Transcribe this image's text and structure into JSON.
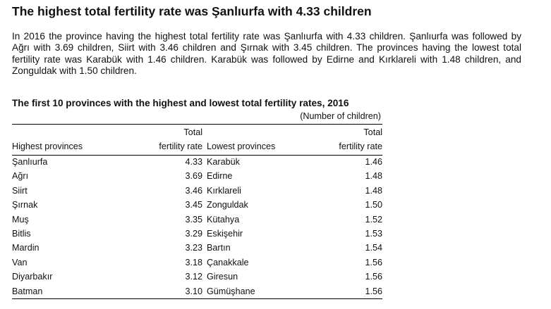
{
  "heading": "The highest total fertility rate was Şanlıurfa with 4.33 children",
  "paragraph": "In 2016 the province having the highest total fertility rate was Şanlıurfa with 4.33 children. Şanlıurfa was followed by Ağrı with 3.69 children, Siirt with 3.46 children and Şırnak with 3.45 children. The provinces having the lowest total fertility rate was Karabük with 1.46 children. Karabük was followed by Edirne and Kırklareli with 1.48 children, and Zonguldak with 1.50 children.",
  "table": {
    "title": "The first 10 provinces with the highest and lowest total fertility rates, 2016",
    "unit": "(Number of children)",
    "headers": {
      "highest_provinces": "Highest provinces",
      "highest_rate_line1": "Total",
      "highest_rate_line2": "fertility rate",
      "lowest_provinces": "Lowest provinces",
      "lowest_rate_line1": "Total",
      "lowest_rate_line2": "fertility rate"
    },
    "rows": [
      {
        "highest_province": "Şanlıurfa",
        "highest_rate": "4.33",
        "lowest_province": "Karabük",
        "lowest_rate": "1.46"
      },
      {
        "highest_province": "Ağrı",
        "highest_rate": "3.69",
        "lowest_province": "Edirne",
        "lowest_rate": "1.48"
      },
      {
        "highest_province": "Siirt",
        "highest_rate": "3.46",
        "lowest_province": "Kırklareli",
        "lowest_rate": "1.48"
      },
      {
        "highest_province": "Şırnak",
        "highest_rate": "3.45",
        "lowest_province": "Zonguldak",
        "lowest_rate": "1.50"
      },
      {
        "highest_province": "Muş",
        "highest_rate": "3.35",
        "lowest_province": "Kütahya",
        "lowest_rate": "1.52"
      },
      {
        "highest_province": "Bitlis",
        "highest_rate": "3.29",
        "lowest_province": "Eskişehir",
        "lowest_rate": "1.53"
      },
      {
        "highest_province": "Mardin",
        "highest_rate": "3.23",
        "lowest_province": "Bartın",
        "lowest_rate": "1.54"
      },
      {
        "highest_province": "Van",
        "highest_rate": "3.18",
        "lowest_province": "Çanakkale",
        "lowest_rate": "1.56"
      },
      {
        "highest_province": "Diyarbakır",
        "highest_rate": "3.12",
        "lowest_province": "Giresun",
        "lowest_rate": "1.56"
      },
      {
        "highest_province": "Batman",
        "highest_rate": "3.10",
        "lowest_province": "Gümüşhane",
        "lowest_rate": "1.56"
      }
    ]
  }
}
